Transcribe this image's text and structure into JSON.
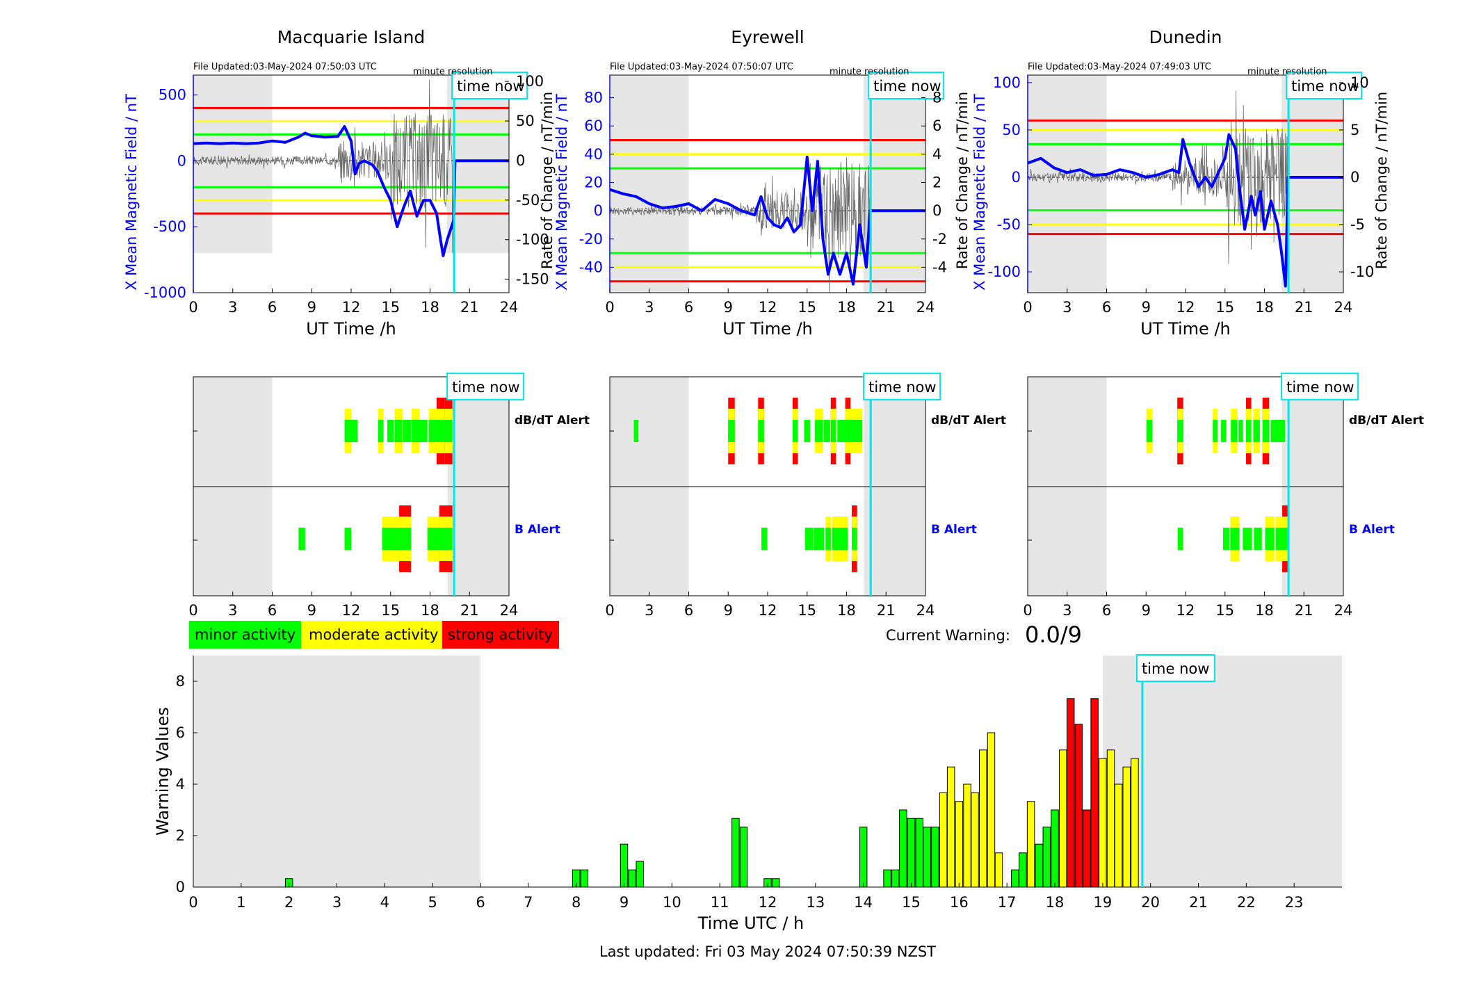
{
  "stations": [
    {
      "name": "Macquarie Island",
      "file_updated": "File Updated:03-May-2024 07:50:03 UTC",
      "resolution": "minute resolution",
      "time_now_label": "time now",
      "left_ylabel": "X Mean Magnetic Field / nT",
      "right_ylabel": "Rate of Change / nT/min",
      "xlabel": "UT Time /h",
      "left_yticks": [
        500,
        0,
        -500,
        -1000
      ],
      "left_ylim": [
        -1000,
        650
      ],
      "right_yticks": [
        100,
        50,
        0,
        -50,
        -100,
        -150
      ],
      "right_ylim": [
        -167,
        108
      ],
      "thresholds": {
        "red": [
          400,
          -400
        ],
        "yellow": [
          300,
          -300
        ],
        "green": [
          200,
          -200
        ]
      },
      "field_trace": [
        [
          0,
          130
        ],
        [
          1,
          135
        ],
        [
          2,
          130
        ],
        [
          3,
          135
        ],
        [
          4,
          130
        ],
        [
          5,
          135
        ],
        [
          6,
          150
        ],
        [
          7,
          140
        ],
        [
          8,
          180
        ],
        [
          8.5,
          210
        ],
        [
          9,
          190
        ],
        [
          10,
          180
        ],
        [
          11,
          185
        ],
        [
          11.5,
          260
        ],
        [
          12,
          150
        ],
        [
          12.3,
          -100
        ],
        [
          12.6,
          -20
        ],
        [
          13,
          0
        ],
        [
          13.6,
          -30
        ],
        [
          14,
          -80
        ],
        [
          14.5,
          -200
        ],
        [
          15,
          -300
        ],
        [
          15.5,
          -500
        ],
        [
          16,
          -350
        ],
        [
          16.5,
          -230
        ],
        [
          17,
          -420
        ],
        [
          17.5,
          -300
        ],
        [
          18,
          -300
        ],
        [
          18.5,
          -400
        ],
        [
          18.8,
          -600
        ],
        [
          19,
          -720
        ],
        [
          19.3,
          -600
        ],
        [
          19.8,
          -450
        ],
        [
          19.9,
          0
        ],
        [
          24,
          0
        ]
      ],
      "dbdt_alerts": [
        {
          "t": 11.75,
          "w": 0.5,
          "level": "moderate"
        },
        {
          "t": 12.25,
          "w": 0.5,
          "level": "minor"
        },
        {
          "t": 14.25,
          "w": 0.4,
          "level": "moderate"
        },
        {
          "t": 15.0,
          "w": 0.5,
          "level": "minor"
        },
        {
          "t": 15.6,
          "w": 0.6,
          "level": "moderate"
        },
        {
          "t": 16.25,
          "w": 0.6,
          "level": "minor"
        },
        {
          "t": 16.9,
          "w": 0.6,
          "level": "moderate"
        },
        {
          "t": 17.5,
          "w": 0.6,
          "level": "minor"
        },
        {
          "t": 18.2,
          "w": 0.6,
          "level": "moderate"
        },
        {
          "t": 18.8,
          "w": 0.6,
          "level": "strong"
        },
        {
          "t": 19.4,
          "w": 0.6,
          "level": "strong"
        }
      ],
      "b_alerts": [
        {
          "t": 8.25,
          "w": 0.5,
          "level": "minor"
        },
        {
          "t": 11.75,
          "w": 0.5,
          "level": "minor"
        },
        {
          "t": 15.25,
          "w": 1.8,
          "level": "moderate"
        },
        {
          "t": 16.1,
          "w": 0.9,
          "level": "strong"
        },
        {
          "t": 18.25,
          "w": 0.9,
          "level": "moderate"
        },
        {
          "t": 19.2,
          "w": 1.0,
          "level": "strong"
        }
      ]
    },
    {
      "name": "Eyrewell",
      "file_updated": "File Updated:03-May-2024 07:50:07 UTC",
      "resolution": "minute resolution",
      "time_now_label": "time now",
      "left_ylabel": "X Mean Magnetic Field / nT",
      "right_ylabel": "Rate of Change / nT/min",
      "xlabel": "UT Time /h",
      "left_yticks": [
        80,
        60,
        40,
        20,
        0,
        -20,
        -40
      ],
      "left_ylim": [
        -58,
        96
      ],
      "right_yticks": [
        8,
        6,
        4,
        2,
        0,
        -2,
        -4
      ],
      "right_ylim": [
        -5.8,
        9.6
      ],
      "thresholds": {
        "red": [
          50,
          -50
        ],
        "yellow": [
          40,
          -40
        ],
        "green": [
          30,
          -30
        ]
      },
      "field_trace": [
        [
          0,
          15
        ],
        [
          1,
          12
        ],
        [
          2,
          10
        ],
        [
          3,
          5
        ],
        [
          4,
          2
        ],
        [
          5,
          3
        ],
        [
          6,
          5
        ],
        [
          7,
          0
        ],
        [
          8,
          8
        ],
        [
          9,
          5
        ],
        [
          10,
          0
        ],
        [
          11,
          -3
        ],
        [
          11.5,
          10
        ],
        [
          12,
          -5
        ],
        [
          12.5,
          -10
        ],
        [
          13,
          -12
        ],
        [
          13.5,
          -5
        ],
        [
          14,
          -15
        ],
        [
          14.5,
          -10
        ],
        [
          15,
          38
        ],
        [
          15.4,
          0
        ],
        [
          15.8,
          35
        ],
        [
          16.2,
          -20
        ],
        [
          16.6,
          -45
        ],
        [
          17,
          -30
        ],
        [
          17.5,
          -45
        ],
        [
          18,
          -30
        ],
        [
          18.5,
          -52
        ],
        [
          19,
          -10
        ],
        [
          19.5,
          -40
        ],
        [
          19.8,
          0
        ],
        [
          24,
          0
        ]
      ],
      "dbdt_alerts": [
        {
          "t": 2.0,
          "w": 0.35,
          "level": "minor"
        },
        {
          "t": 9.25,
          "w": 0.5,
          "level": "strong"
        },
        {
          "t": 11.5,
          "w": 0.45,
          "level": "strong"
        },
        {
          "t": 14.1,
          "w": 0.4,
          "level": "strong"
        },
        {
          "t": 15.0,
          "w": 0.45,
          "level": "minor"
        },
        {
          "t": 15.9,
          "w": 0.6,
          "level": "moderate"
        },
        {
          "t": 16.5,
          "w": 0.5,
          "level": "minor"
        },
        {
          "t": 17.0,
          "w": 0.4,
          "level": "strong"
        },
        {
          "t": 17.6,
          "w": 0.6,
          "level": "minor"
        },
        {
          "t": 18.1,
          "w": 0.4,
          "level": "strong"
        },
        {
          "t": 18.75,
          "w": 0.9,
          "level": "moderate"
        }
      ],
      "b_alerts": [
        {
          "t": 11.75,
          "w": 0.45,
          "level": "minor"
        },
        {
          "t": 15.15,
          "w": 0.6,
          "level": "minor"
        },
        {
          "t": 15.9,
          "w": 0.8,
          "level": "minor"
        },
        {
          "t": 16.6,
          "w": 0.4,
          "level": "moderate"
        },
        {
          "t": 17.5,
          "w": 1.2,
          "level": "moderate"
        },
        {
          "t": 18.6,
          "w": 0.4,
          "level": "strong"
        }
      ]
    },
    {
      "name": "Dunedin",
      "file_updated": "File Updated:03-May-2024 07:49:03 UTC",
      "resolution": "minute resolution",
      "time_now_label": "time now",
      "left_ylabel": "X Mean Magnetic Field / nT",
      "right_ylabel": "Rate of Change / nT/min",
      "xlabel": "UT Time /h",
      "left_yticks": [
        100,
        50,
        0,
        -50,
        -100
      ],
      "left_ylim": [
        -122,
        108
      ],
      "right_yticks": [
        10,
        5,
        0,
        -5,
        -10
      ],
      "right_ylim": [
        -12.2,
        10.8
      ],
      "thresholds": {
        "red": [
          60,
          -60
        ],
        "yellow": [
          50,
          -50
        ],
        "green": [
          35,
          -35
        ]
      },
      "field_trace": [
        [
          0,
          15
        ],
        [
          1,
          20
        ],
        [
          2,
          10
        ],
        [
          3,
          5
        ],
        [
          4,
          8
        ],
        [
          5,
          2
        ],
        [
          6,
          3
        ],
        [
          7,
          8
        ],
        [
          8,
          5
        ],
        [
          9,
          0
        ],
        [
          10,
          3
        ],
        [
          11,
          8
        ],
        [
          11.5,
          5
        ],
        [
          11.8,
          40
        ],
        [
          12.3,
          15
        ],
        [
          13,
          -10
        ],
        [
          13.5,
          0
        ],
        [
          14,
          -10
        ],
        [
          14.5,
          5
        ],
        [
          15,
          20
        ],
        [
          15.3,
          45
        ],
        [
          15.8,
          30
        ],
        [
          16,
          0
        ],
        [
          16.5,
          -55
        ],
        [
          17,
          -20
        ],
        [
          17.3,
          -40
        ],
        [
          17.7,
          -15
        ],
        [
          18,
          -55
        ],
        [
          18.5,
          -25
        ],
        [
          19,
          -50
        ],
        [
          19.3,
          -80
        ],
        [
          19.6,
          -115
        ],
        [
          19.8,
          0
        ],
        [
          24,
          0
        ]
      ],
      "dbdt_alerts": [
        {
          "t": 9.25,
          "w": 0.45,
          "level": "moderate"
        },
        {
          "t": 11.6,
          "w": 0.45,
          "level": "strong"
        },
        {
          "t": 14.25,
          "w": 0.35,
          "level": "moderate"
        },
        {
          "t": 14.9,
          "w": 0.4,
          "level": "minor"
        },
        {
          "t": 15.7,
          "w": 0.5,
          "level": "moderate"
        },
        {
          "t": 16.2,
          "w": 0.35,
          "level": "minor"
        },
        {
          "t": 16.8,
          "w": 0.4,
          "level": "strong"
        },
        {
          "t": 17.4,
          "w": 0.5,
          "level": "moderate"
        },
        {
          "t": 18.1,
          "w": 0.5,
          "level": "strong"
        },
        {
          "t": 18.75,
          "w": 0.55,
          "level": "minor"
        },
        {
          "t": 19.3,
          "w": 0.55,
          "level": "minor"
        }
      ],
      "b_alerts": [
        {
          "t": 11.6,
          "w": 0.4,
          "level": "minor"
        },
        {
          "t": 15.1,
          "w": 0.5,
          "level": "minor"
        },
        {
          "t": 15.75,
          "w": 0.7,
          "level": "moderate"
        },
        {
          "t": 16.7,
          "w": 0.7,
          "level": "minor"
        },
        {
          "t": 17.5,
          "w": 0.6,
          "level": "minor"
        },
        {
          "t": 18.4,
          "w": 0.7,
          "level": "moderate"
        },
        {
          "t": 19.1,
          "w": 0.5,
          "level": "moderate"
        },
        {
          "t": 19.6,
          "w": 0.5,
          "level": "strong"
        }
      ]
    }
  ],
  "alert_labels": {
    "dbdt": "dB/dT Alert",
    "b": "B Alert"
  },
  "legend": [
    {
      "label": "minor activity",
      "color": "#00ff00"
    },
    {
      "label": "moderate activity",
      "color": "#ffff00"
    },
    {
      "label": "strong activity",
      "color": "#ff0000"
    }
  ],
  "current_warning": {
    "label": "Current Warning:",
    "value": "0.0/9"
  },
  "colors": {
    "minor": "#00ff00",
    "moderate": "#ffff00",
    "strong": "#ff0000",
    "time_now": "#00e5ee",
    "field_trace": "#0000ff",
    "night_shade": "#e6e6e6"
  },
  "time_now_hours": 19.83,
  "night_shading_hours": [
    [
      0,
      6
    ],
    [
      19.33,
      24
    ]
  ],
  "top_xticks": [
    0,
    3,
    6,
    9,
    12,
    15,
    18,
    21,
    24
  ],
  "chart_data": {
    "type": "bar",
    "xlabel": "Time UTC / h",
    "ylabel": "Warning Values",
    "xlim": [
      0,
      24
    ],
    "ylim": [
      0,
      9
    ],
    "xticks": [
      0,
      1,
      2,
      3,
      4,
      5,
      6,
      7,
      8,
      9,
      10,
      11,
      12,
      13,
      14,
      15,
      16,
      17,
      18,
      19,
      20,
      21,
      22,
      23
    ],
    "yticks": [
      0,
      2,
      4,
      6,
      8
    ],
    "time_now_label": "time now",
    "night_shading_hours": [
      [
        0,
        6
      ],
      [
        19,
        24
      ]
    ],
    "series": [
      {
        "values": [
          {
            "t": 2.0,
            "v": 0.33,
            "level": "minor"
          },
          {
            "t": 8.0,
            "v": 0.67,
            "level": "minor"
          },
          {
            "t": 8.17,
            "v": 0.67,
            "level": "minor"
          },
          {
            "t": 9.0,
            "v": 1.67,
            "level": "minor"
          },
          {
            "t": 9.17,
            "v": 0.67,
            "level": "minor"
          },
          {
            "t": 9.33,
            "v": 1.0,
            "level": "minor"
          },
          {
            "t": 11.33,
            "v": 2.67,
            "level": "minor"
          },
          {
            "t": 11.5,
            "v": 2.33,
            "level": "minor"
          },
          {
            "t": 12.0,
            "v": 0.33,
            "level": "minor"
          },
          {
            "t": 12.17,
            "v": 0.33,
            "level": "minor"
          },
          {
            "t": 14.0,
            "v": 2.33,
            "level": "minor"
          },
          {
            "t": 14.5,
            "v": 0.67,
            "level": "minor"
          },
          {
            "t": 14.67,
            "v": 0.67,
            "level": "minor"
          },
          {
            "t": 14.83,
            "v": 3.0,
            "level": "minor"
          },
          {
            "t": 15.0,
            "v": 2.67,
            "level": "minor"
          },
          {
            "t": 15.17,
            "v": 2.67,
            "level": "minor"
          },
          {
            "t": 15.33,
            "v": 2.33,
            "level": "minor"
          },
          {
            "t": 15.5,
            "v": 2.33,
            "level": "minor"
          },
          {
            "t": 15.67,
            "v": 3.67,
            "level": "moderate"
          },
          {
            "t": 15.83,
            "v": 4.67,
            "level": "moderate"
          },
          {
            "t": 16.0,
            "v": 3.33,
            "level": "moderate"
          },
          {
            "t": 16.17,
            "v": 4.0,
            "level": "moderate"
          },
          {
            "t": 16.33,
            "v": 3.67,
            "level": "moderate"
          },
          {
            "t": 16.5,
            "v": 5.33,
            "level": "moderate"
          },
          {
            "t": 16.67,
            "v": 6.0,
            "level": "moderate"
          },
          {
            "t": 16.83,
            "v": 1.33,
            "level": "moderate"
          },
          {
            "t": 17.17,
            "v": 0.67,
            "level": "minor"
          },
          {
            "t": 17.33,
            "v": 1.33,
            "level": "minor"
          },
          {
            "t": 17.5,
            "v": 3.33,
            "level": "moderate"
          },
          {
            "t": 17.67,
            "v": 1.67,
            "level": "minor"
          },
          {
            "t": 17.83,
            "v": 2.33,
            "level": "minor"
          },
          {
            "t": 18.0,
            "v": 3.0,
            "level": "minor"
          },
          {
            "t": 18.17,
            "v": 5.33,
            "level": "moderate"
          },
          {
            "t": 18.33,
            "v": 7.33,
            "level": "strong"
          },
          {
            "t": 18.5,
            "v": 6.33,
            "level": "strong"
          },
          {
            "t": 18.67,
            "v": 3.0,
            "level": "strong"
          },
          {
            "t": 18.83,
            "v": 7.33,
            "level": "strong"
          },
          {
            "t": 19.0,
            "v": 5.0,
            "level": "moderate"
          },
          {
            "t": 19.17,
            "v": 5.33,
            "level": "moderate"
          },
          {
            "t": 19.33,
            "v": 4.0,
            "level": "moderate"
          },
          {
            "t": 19.5,
            "v": 4.67,
            "level": "moderate"
          },
          {
            "t": 19.67,
            "v": 5.0,
            "level": "moderate"
          }
        ]
      }
    ]
  },
  "footer": "Last updated: Fri 03 May 2024 07:50:39 NZST"
}
